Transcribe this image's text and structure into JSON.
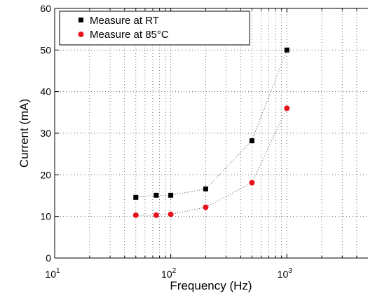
{
  "chart_data": {
    "type": "scatter",
    "xlabel": "Frequency (Hz)",
    "ylabel": "Current (mA)",
    "xscale": "log",
    "xlim": [
      10,
      5000
    ],
    "ylim": [
      0,
      60
    ],
    "grid": true,
    "legend_position": "top-left",
    "x_tick_labels": [
      {
        "base": "10",
        "exp": "1"
      },
      {
        "base": "10",
        "exp": "2"
      },
      {
        "base": "10",
        "exp": "3"
      }
    ],
    "y_ticks": [
      "0",
      "10",
      "20",
      "30",
      "40",
      "50",
      "60"
    ],
    "series": [
      {
        "name": "Measure at RT",
        "marker": "square",
        "color": "#000000",
        "fit_line": true,
        "x": [
          50,
          75,
          100,
          200,
          500,
          1000
        ],
        "y": [
          14.6,
          15.1,
          15.1,
          16.6,
          28.2,
          50.0
        ]
      },
      {
        "name": "Measure at 85°C",
        "marker": "circle",
        "color": "#e8141c",
        "fit_line": true,
        "x": [
          50,
          75,
          100,
          200,
          500,
          1000
        ],
        "y": [
          10.3,
          10.3,
          10.5,
          12.2,
          18.1,
          36.0
        ]
      }
    ]
  }
}
